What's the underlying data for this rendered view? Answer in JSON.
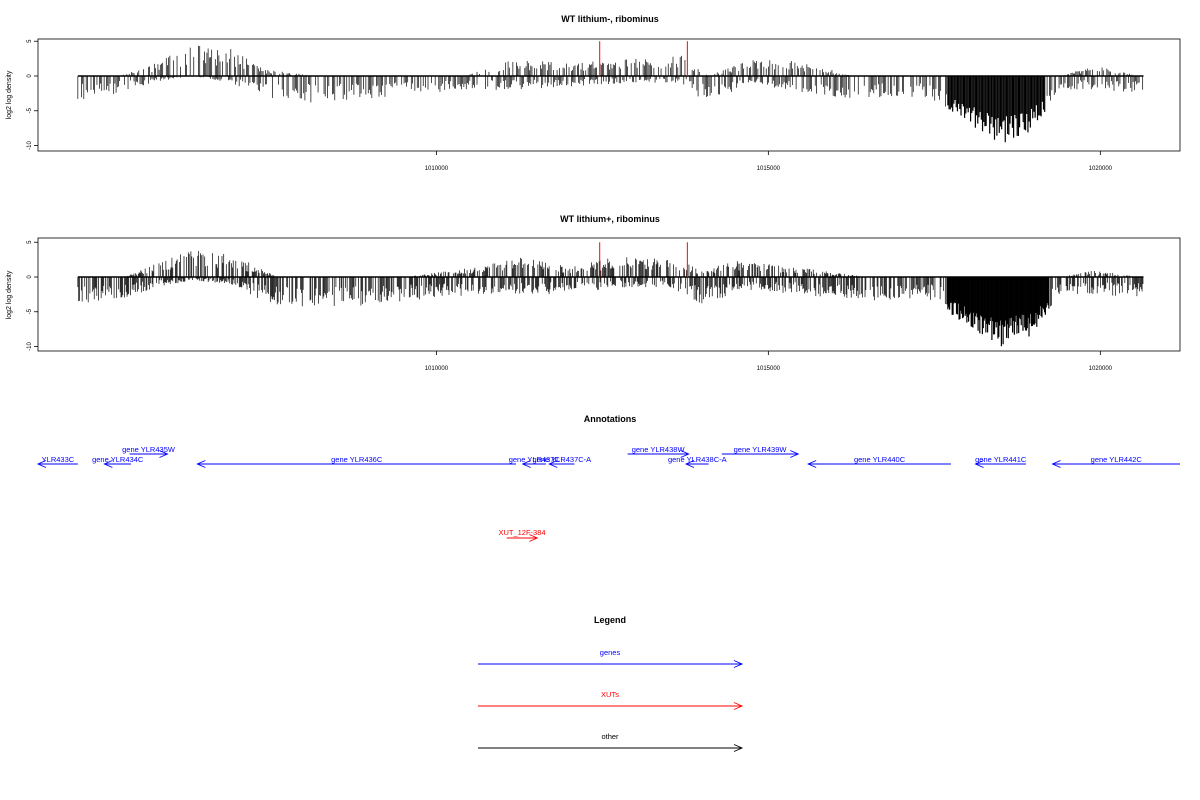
{
  "chart_data": [
    {
      "type": "bar",
      "title": "WT lithium-, ribominus",
      "ylabel": "log2 log density",
      "xlabel": "",
      "ylim": [
        -11,
        6
      ],
      "xlim": [
        1004000,
        1021200
      ],
      "x_ticks": [
        {
          "value": 1010000,
          "label": "1010000"
        },
        {
          "value": 1015000,
          "label": "1015000"
        },
        {
          "value": 1020000,
          "label": "1020000"
        }
      ],
      "y_ticks": [
        {
          "value": 5,
          "label": "5"
        },
        {
          "value": 0,
          "label": "0"
        },
        {
          "value": -5,
          "label": "-5"
        },
        {
          "value": -10,
          "label": "-10"
        }
      ],
      "baseline": {
        "from": 1004600,
        "to": 1020650,
        "value": 0
      },
      "highlights": [
        {
          "x": 1012460,
          "value": 5,
          "color": "#ff0000"
        },
        {
          "x": 1013780,
          "value": 5,
          "color": "#ff0000"
        }
      ],
      "density_profile": [
        {
          "x": 1004600,
          "pos": 0,
          "neg": -3.5
        },
        {
          "x": 1005200,
          "pos": 0,
          "neg": -2.5
        },
        {
          "x": 1005700,
          "pos": 1.5,
          "neg": -1
        },
        {
          "x": 1006300,
          "pos": 4.5,
          "neg": 0
        },
        {
          "x": 1006900,
          "pos": 4,
          "neg": -1
        },
        {
          "x": 1007400,
          "pos": 1,
          "neg": -3
        },
        {
          "x": 1008200,
          "pos": 0,
          "neg": -4
        },
        {
          "x": 1009300,
          "pos": 0,
          "neg": -3
        },
        {
          "x": 1010400,
          "pos": 0,
          "neg": -2
        },
        {
          "x": 1011200,
          "pos": 2.5,
          "neg": -2
        },
        {
          "x": 1012000,
          "pos": 2,
          "neg": -1.5
        },
        {
          "x": 1012900,
          "pos": 2.5,
          "neg": -1
        },
        {
          "x": 1013700,
          "pos": 3,
          "neg": -1
        },
        {
          "x": 1014100,
          "pos": 0,
          "neg": -4.5
        },
        {
          "x": 1014700,
          "pos": 2.5,
          "neg": -1
        },
        {
          "x": 1015300,
          "pos": 2.5,
          "neg": -2
        },
        {
          "x": 1016300,
          "pos": 0,
          "neg": -3.5
        },
        {
          "x": 1017300,
          "pos": 0,
          "neg": -3
        },
        {
          "x": 1017900,
          "pos": 0,
          "neg": -6
        },
        {
          "x": 1018500,
          "pos": 0,
          "neg": -10
        },
        {
          "x": 1018950,
          "pos": 0,
          "neg": -8
        },
        {
          "x": 1019400,
          "pos": 0,
          "neg": -2
        },
        {
          "x": 1019900,
          "pos": 1.5,
          "neg": -2
        },
        {
          "x": 1020600,
          "pos": 0,
          "neg": -2.5
        }
      ]
    },
    {
      "type": "bar",
      "title": "WT lithium+, ribominus",
      "ylabel": "log2 log density",
      "xlabel": "",
      "ylim": [
        -11,
        6
      ],
      "xlim": [
        1004000,
        1021200
      ],
      "x_ticks": [
        {
          "value": 1010000,
          "label": "1010000"
        },
        {
          "value": 1015000,
          "label": "1015000"
        },
        {
          "value": 1020000,
          "label": "1020000"
        }
      ],
      "y_ticks": [
        {
          "value": 5,
          "label": "5"
        },
        {
          "value": 0,
          "label": "0"
        },
        {
          "value": -5,
          "label": "-5"
        },
        {
          "value": -10,
          "label": "-10"
        }
      ],
      "baseline": {
        "from": 1004600,
        "to": 1020650,
        "value": 0
      },
      "highlights": [
        {
          "x": 1012460,
          "value": 5,
          "color": "#ff0000"
        },
        {
          "x": 1013780,
          "value": 5,
          "color": "#ff0000"
        }
      ],
      "density_profile": [
        {
          "x": 1004600,
          "pos": 0,
          "neg": -4
        },
        {
          "x": 1005300,
          "pos": 0,
          "neg": -3
        },
        {
          "x": 1005800,
          "pos": 2,
          "neg": -1.5
        },
        {
          "x": 1006300,
          "pos": 4,
          "neg": -0.5
        },
        {
          "x": 1006900,
          "pos": 3.5,
          "neg": -1
        },
        {
          "x": 1007600,
          "pos": 0,
          "neg": -4.5
        },
        {
          "x": 1008500,
          "pos": 0,
          "neg": -4.5
        },
        {
          "x": 1009500,
          "pos": 0,
          "neg": -3.5
        },
        {
          "x": 1010600,
          "pos": 1.5,
          "neg": -2.5
        },
        {
          "x": 1011300,
          "pos": 3,
          "neg": -2.5
        },
        {
          "x": 1012000,
          "pos": 1.5,
          "neg": -2.5
        },
        {
          "x": 1012700,
          "pos": 3,
          "neg": -1.5
        },
        {
          "x": 1013500,
          "pos": 3,
          "neg": -1.5
        },
        {
          "x": 1014000,
          "pos": 1,
          "neg": -4
        },
        {
          "x": 1014600,
          "pos": 2.5,
          "neg": -2
        },
        {
          "x": 1015400,
          "pos": 1.5,
          "neg": -2.5
        },
        {
          "x": 1016500,
          "pos": 0,
          "neg": -3.5
        },
        {
          "x": 1017400,
          "pos": 0,
          "neg": -3
        },
        {
          "x": 1017900,
          "pos": 0,
          "neg": -6.5
        },
        {
          "x": 1018500,
          "pos": 0,
          "neg": -10
        },
        {
          "x": 1018950,
          "pos": 0,
          "neg": -8.5
        },
        {
          "x": 1019400,
          "pos": 0,
          "neg": -3
        },
        {
          "x": 1019900,
          "pos": 1,
          "neg": -2.5
        },
        {
          "x": 1020600,
          "pos": 0,
          "neg": -3
        }
      ]
    }
  ],
  "annotations": {
    "title": "Annotations",
    "xlim": [
      1004000,
      1021200
    ],
    "genes": [
      {
        "label": "YLR433C",
        "start": 1004000,
        "end": 1004600,
        "strand": "-",
        "row": 0
      },
      {
        "label": "gene YLR434C",
        "start": 1005000,
        "end": 1005400,
        "strand": "-",
        "row": 0
      },
      {
        "label": "gene YLR435W",
        "start": 1005380,
        "end": 1005950,
        "strand": "+",
        "row": -1
      },
      {
        "label": "gene YLR436C",
        "start": 1006400,
        "end": 1011200,
        "strand": "-",
        "row": 0
      },
      {
        "label": "gene YLR437C",
        "start": 1011300,
        "end": 1011650,
        "strand": "-",
        "row": 0
      },
      {
        "label": "gene YLR437C-A",
        "start": 1011700,
        "end": 1012080,
        "strand": "-",
        "row": 0
      },
      {
        "label": "gene YLR438W",
        "start": 1012880,
        "end": 1013800,
        "strand": "+",
        "row": -1
      },
      {
        "label": "gene YLR438C-A",
        "start": 1013760,
        "end": 1014100,
        "strand": "-",
        "row": 0
      },
      {
        "label": "gene YLR439W",
        "start": 1014300,
        "end": 1015450,
        "strand": "+",
        "row": -1
      },
      {
        "label": "gene YLR440C",
        "start": 1015600,
        "end": 1017750,
        "strand": "-",
        "row": 0
      },
      {
        "label": "gene YLR441C",
        "start": 1018120,
        "end": 1018880,
        "strand": "-",
        "row": 0
      },
      {
        "label": "gene YLR442C",
        "start": 1019280,
        "end": 1021200,
        "strand": "-",
        "row": 0
      }
    ],
    "xuts": [
      {
        "label": "XUT_12F-384",
        "start": 1011060,
        "end": 1011520,
        "strand": "+"
      }
    ]
  },
  "legend": {
    "title": "Legend",
    "items": [
      {
        "label": "genes",
        "color": "#0000ff"
      },
      {
        "label": "XUTs",
        "color": "#ff0000"
      },
      {
        "label": "other",
        "color": "#000000"
      }
    ]
  },
  "colors": {
    "gene": "#0000ff",
    "xut": "#ff0000",
    "signal": "#000000"
  }
}
